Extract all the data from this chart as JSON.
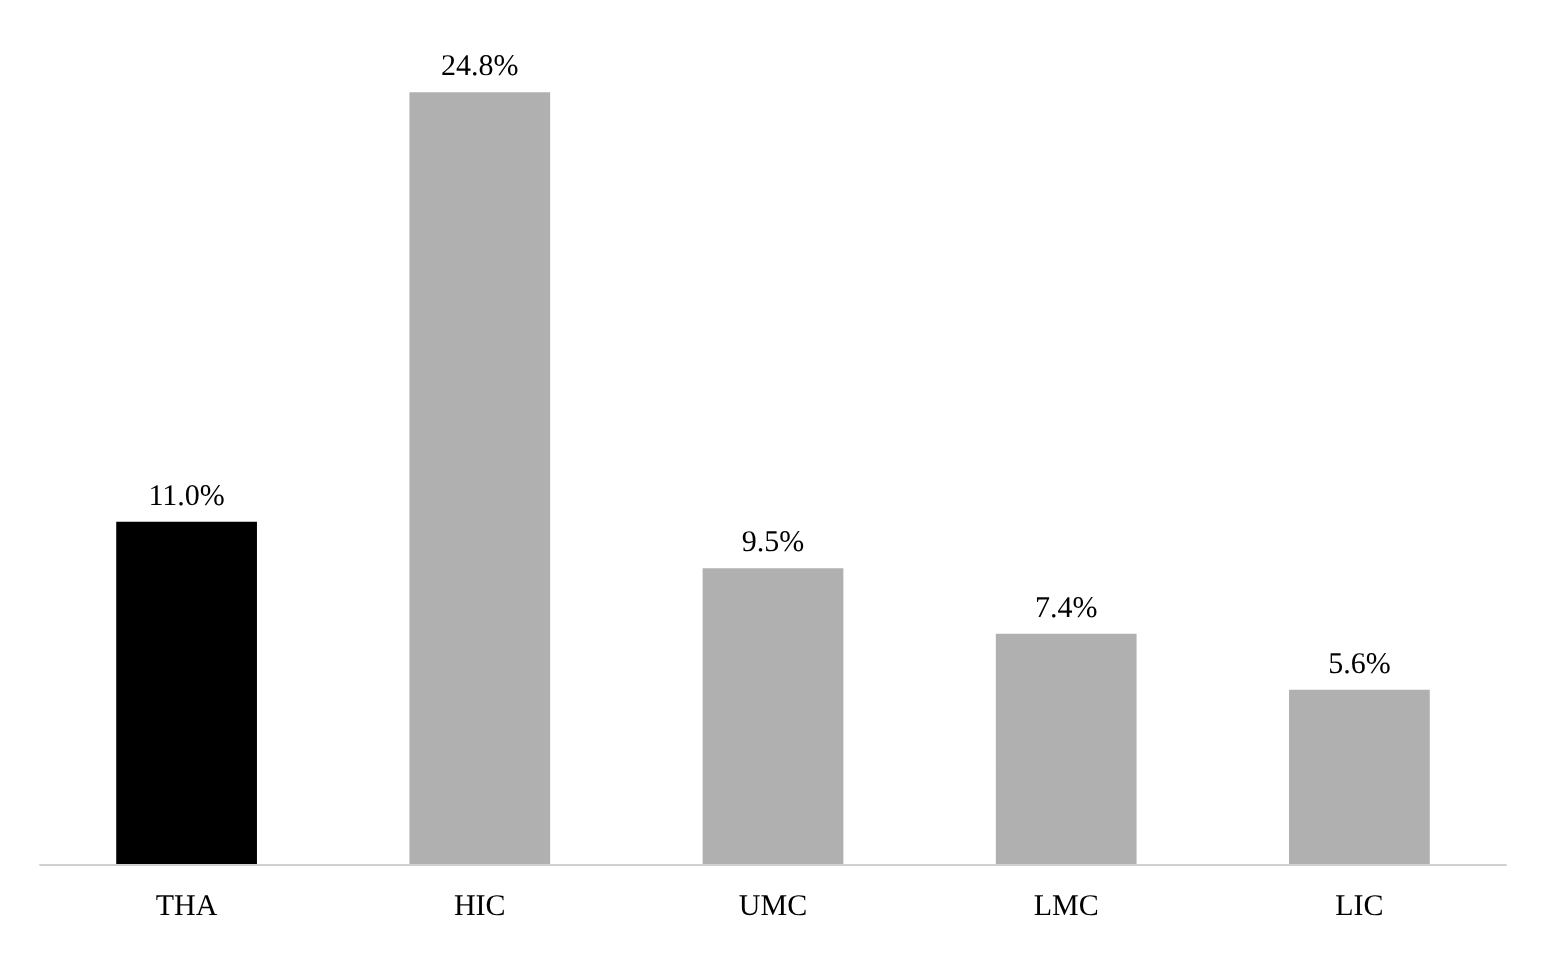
{
  "chart_data": {
    "type": "bar",
    "categories": [
      "THA",
      "HIC",
      "UMC",
      "LMC",
      "LIC"
    ],
    "values": [
      11.0,
      24.8,
      9.5,
      7.4,
      5.6
    ],
    "value_labels": [
      "11.0%",
      "24.8%",
      "9.5%",
      "7.4%",
      "5.6%"
    ],
    "colors": [
      "#000000",
      "#b0b0b0",
      "#b0b0b0",
      "#b0b0b0",
      "#b0b0b0"
    ],
    "tick_labels": "x"
  }
}
